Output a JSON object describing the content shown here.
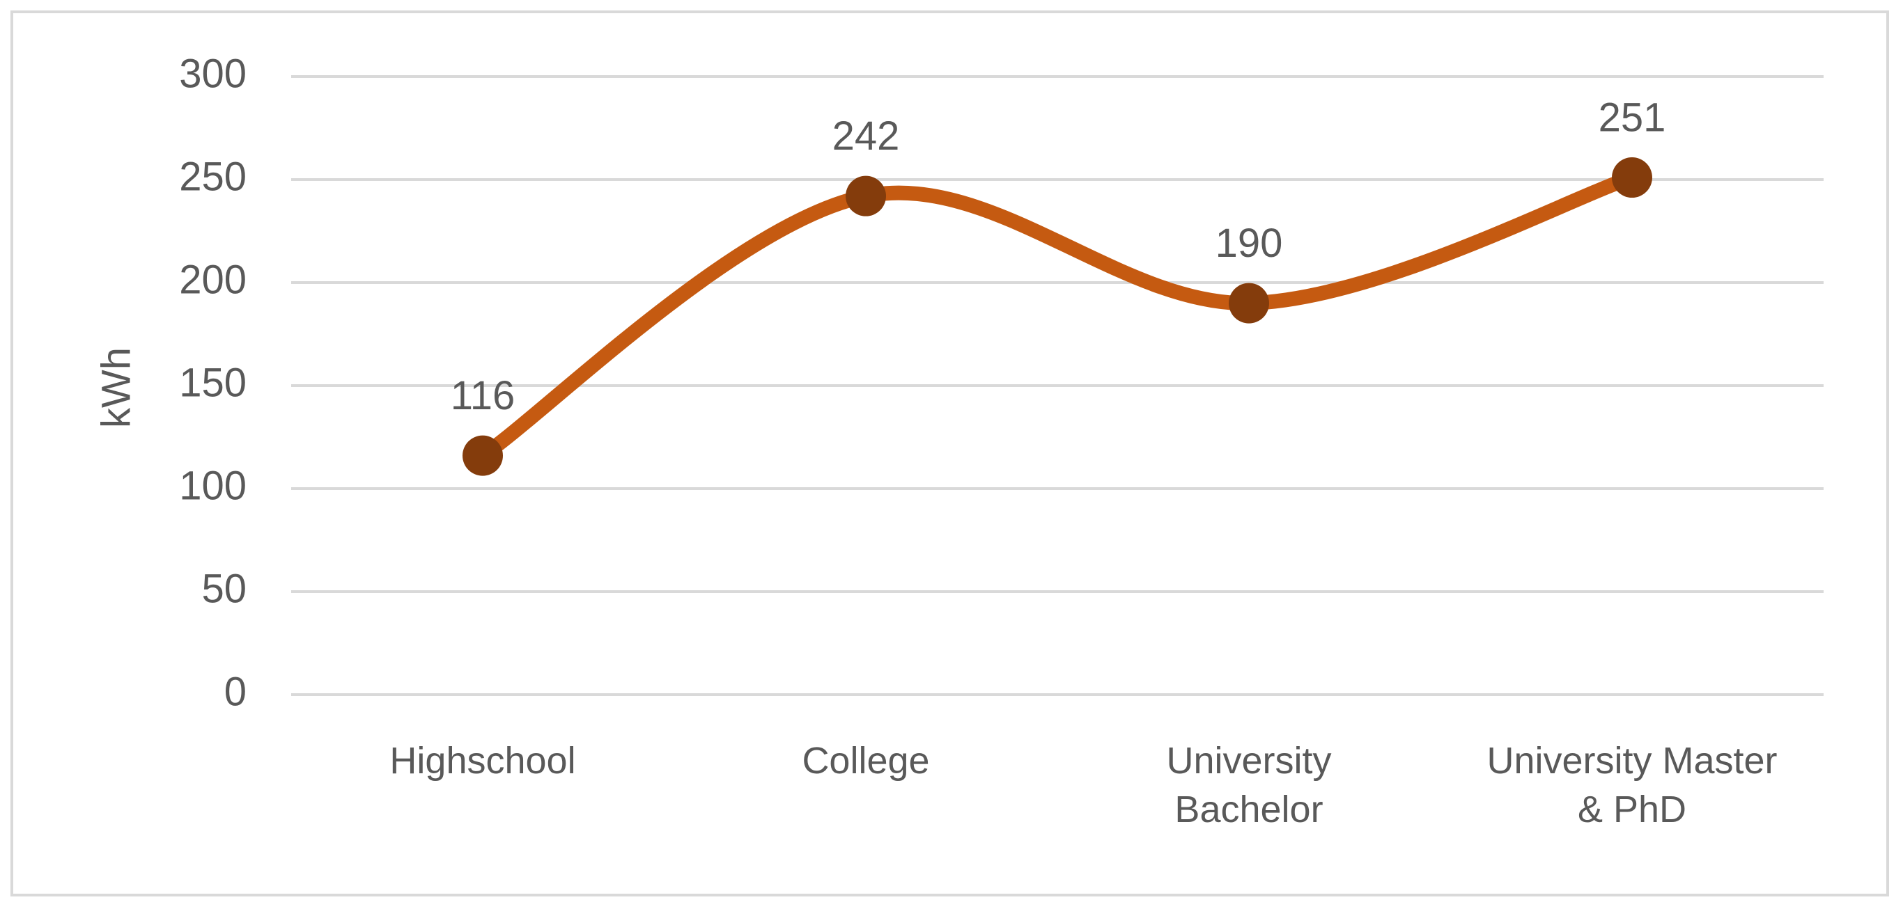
{
  "chart_data": {
    "type": "line",
    "y_label": "kWh",
    "categories": [
      "Highschool",
      "College",
      "University Bachelor",
      "University Master & PhD"
    ],
    "values": [
      116,
      242,
      190,
      251
    ],
    "color": "#c55a11",
    "marker_color": "#843c0c",
    "ylim": [
      0,
      300
    ],
    "yticks": [
      0,
      50,
      100,
      150,
      200,
      250,
      300
    ],
    "grid": true,
    "smooth": true
  }
}
